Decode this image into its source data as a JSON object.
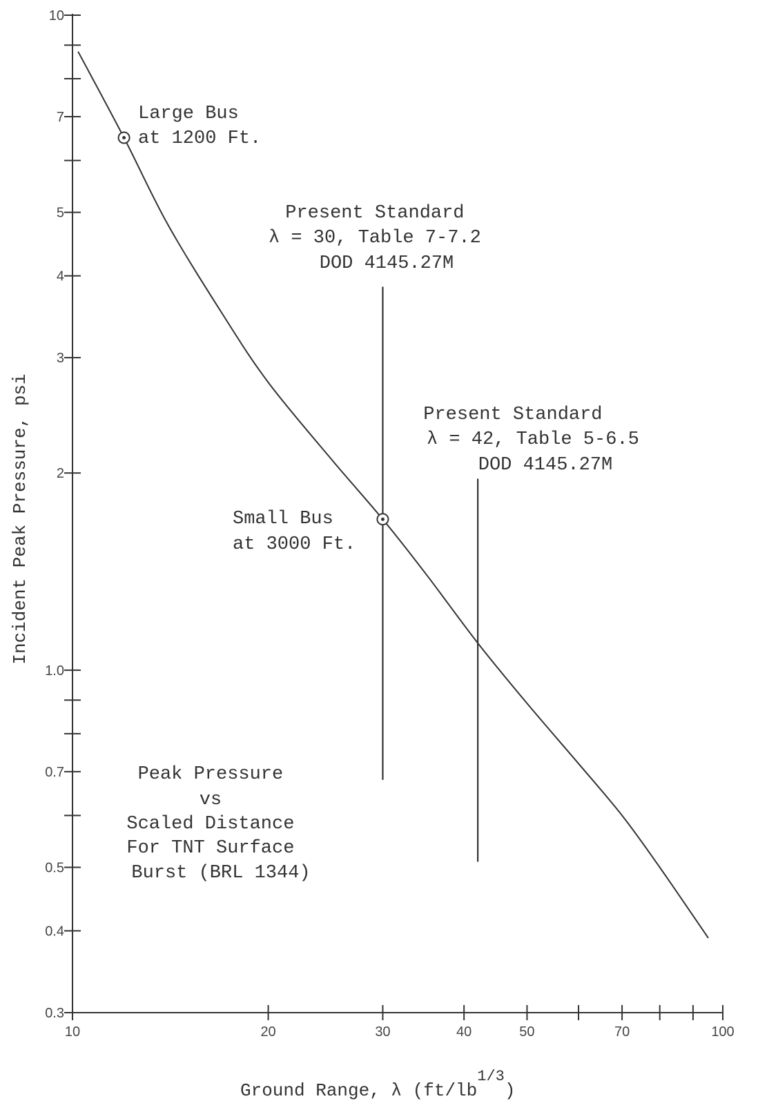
{
  "chart_data": {
    "type": "line",
    "title": "",
    "xlabel": "Ground Range, λ (ft/lb",
    "xlabel_superscript": "1/3",
    "xlabel_suffix": ")",
    "ylabel": "Incident Peak Pressure, psi",
    "xscale": "log",
    "yscale": "log",
    "xlim": [
      10,
      100
    ],
    "ylim": [
      0.3,
      10
    ],
    "grid": false,
    "x_ticks": [
      10,
      20,
      30,
      40,
      50,
      60,
      70,
      80,
      90,
      100
    ],
    "x_tick_labels": [
      {
        "value": 10,
        "label": "10"
      },
      {
        "value": 20,
        "label": "20"
      },
      {
        "value": 30,
        "label": "30"
      },
      {
        "value": 40,
        "label": "40"
      },
      {
        "value": 50,
        "label": "50"
      },
      {
        "value": 70,
        "label": "70"
      },
      {
        "value": 100,
        "label": "100"
      }
    ],
    "y_ticks": [
      0.3,
      0.4,
      0.5,
      0.6,
      0.7,
      0.8,
      0.9,
      1.0,
      2,
      3,
      4,
      5,
      6,
      7,
      8,
      9,
      10
    ],
    "y_tick_labels": [
      {
        "value": 0.3,
        "label": "0.3"
      },
      {
        "value": 0.4,
        "label": "0.4"
      },
      {
        "value": 0.5,
        "label": "0.5"
      },
      {
        "value": 0.7,
        "label": "0.7"
      },
      {
        "value": 1.0,
        "label": "1.0"
      },
      {
        "value": 2,
        "label": "2"
      },
      {
        "value": 3,
        "label": "3"
      },
      {
        "value": 4,
        "label": "4"
      },
      {
        "value": 5,
        "label": "5"
      },
      {
        "value": 7,
        "label": "7"
      },
      {
        "value": 10,
        "label": "10"
      }
    ],
    "series": [
      {
        "x": [
          10.2,
          12,
          14,
          17,
          20,
          25,
          30,
          35,
          42,
          50,
          60,
          70,
          80,
          95
        ],
        "y": [
          8.8,
          6.5,
          4.8,
          3.5,
          2.75,
          2.1,
          1.7,
          1.4,
          1.1,
          0.89,
          0.72,
          0.6,
          0.5,
          0.39
        ]
      }
    ],
    "markers": [
      {
        "name": "large-bus",
        "x": 12,
        "y": 6.5,
        "lines": [
          "Large Bus",
          "at 1200 Ft."
        ]
      },
      {
        "name": "small-bus",
        "x": 30,
        "y": 1.7,
        "lines": [
          "Small Bus",
          "at 3000 Ft."
        ]
      }
    ],
    "reference_lines": [
      {
        "name": "lambda-30",
        "x": 30,
        "y_from": 0.68,
        "y_to": 3.85,
        "lines": [
          "Present Standard",
          "λ = 30, Table 7-7.2",
          "DOD 4145.27M"
        ]
      },
      {
        "name": "lambda-42",
        "x": 42,
        "y_from": 0.51,
        "y_to": 1.96,
        "lines": [
          "Present Standard",
          "λ = 42, Table 5-6.5",
          "DOD 4145.27M"
        ]
      }
    ],
    "annotations": [
      {
        "name": "chart-caption",
        "lines": [
          "Peak Pressure",
          "vs",
          "Scaled Distance",
          "For TNT Surface",
          "Burst (BRL 1344)"
        ]
      }
    ]
  }
}
